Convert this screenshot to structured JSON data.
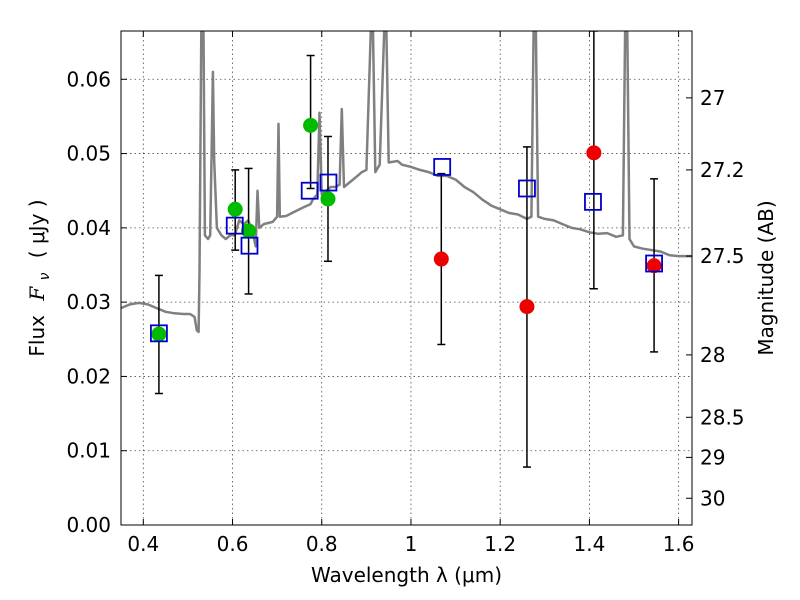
{
  "chart_data": {
    "type": "scatter",
    "xlabel": "Wavelength  λ (μm)",
    "ylabel": "Flux  F_ν  ( μJy )",
    "ylabel_parts": {
      "pre": "Flux",
      "symbol": "F",
      "sub": "ν",
      "post": "( μJy )"
    },
    "ylabel_right": "Magnitude (AB)",
    "xlim": [
      0.35,
      1.63
    ],
    "ylim": [
      0.0,
      0.0665
    ],
    "grid": true,
    "x_ticks": [
      {
        "value": 0.4,
        "label": "0.4"
      },
      {
        "value": 0.6,
        "label": "0.6"
      },
      {
        "value": 0.8,
        "label": "0.8"
      },
      {
        "value": 1.0,
        "label": "1"
      },
      {
        "value": 1.2,
        "label": "1.2"
      },
      {
        "value": 1.4,
        "label": "1.4"
      },
      {
        "value": 1.6,
        "label": "1.6"
      }
    ],
    "y_ticks": [
      {
        "value": 0.0,
        "label": "0.00"
      },
      {
        "value": 0.01,
        "label": "0.01"
      },
      {
        "value": 0.02,
        "label": "0.02"
      },
      {
        "value": 0.03,
        "label": "0.03"
      },
      {
        "value": 0.04,
        "label": "0.04"
      },
      {
        "value": 0.05,
        "label": "0.05"
      },
      {
        "value": 0.06,
        "label": "0.06"
      }
    ],
    "right_ticks": [
      {
        "flux": 0.0575,
        "label": "27"
      },
      {
        "flux": 0.0478,
        "label": "27.2"
      },
      {
        "flux": 0.0362,
        "label": "27.5"
      },
      {
        "flux": 0.0229,
        "label": "28"
      },
      {
        "flux": 0.0145,
        "label": "28.5"
      },
      {
        "flux": 0.0091,
        "label": "29"
      },
      {
        "flux": 0.0036,
        "label": "30"
      }
    ],
    "colors": {
      "template": "#808080",
      "green": "#00bb00",
      "red": "#ee0000",
      "model_box": "#0000cc",
      "errorbar": "#000000"
    },
    "template_spectrum": [
      [
        0.35,
        0.0292
      ],
      [
        0.37,
        0.0297
      ],
      [
        0.39,
        0.0299
      ],
      [
        0.41,
        0.0297
      ],
      [
        0.43,
        0.0292
      ],
      [
        0.45,
        0.0287
      ],
      [
        0.47,
        0.0285
      ],
      [
        0.49,
        0.0284
      ],
      [
        0.505,
        0.0284
      ],
      [
        0.515,
        0.028
      ],
      [
        0.52,
        0.0262
      ],
      [
        0.524,
        0.026
      ],
      [
        0.526,
        0.034
      ],
      [
        0.53,
        0.0665
      ],
      [
        0.535,
        0.0665
      ],
      [
        0.538,
        0.039
      ],
      [
        0.545,
        0.0385
      ],
      [
        0.55,
        0.039
      ],
      [
        0.553,
        0.05
      ],
      [
        0.556,
        0.061
      ],
      [
        0.559,
        0.049
      ],
      [
        0.565,
        0.04
      ],
      [
        0.575,
        0.039
      ],
      [
        0.585,
        0.0385
      ],
      [
        0.595,
        0.039
      ],
      [
        0.605,
        0.039
      ],
      [
        0.615,
        0.041
      ],
      [
        0.625,
        0.0405
      ],
      [
        0.635,
        0.041
      ],
      [
        0.645,
        0.0395
      ],
      [
        0.652,
        0.0375
      ],
      [
        0.656,
        0.045
      ],
      [
        0.66,
        0.04
      ],
      [
        0.67,
        0.0405
      ],
      [
        0.69,
        0.0408
      ],
      [
        0.7,
        0.0415
      ],
      [
        0.703,
        0.054
      ],
      [
        0.706,
        0.0415
      ],
      [
        0.72,
        0.0416
      ],
      [
        0.74,
        0.0422
      ],
      [
        0.76,
        0.0428
      ],
      [
        0.775,
        0.0432
      ],
      [
        0.78,
        0.0438
      ],
      [
        0.79,
        0.0445
      ],
      [
        0.795,
        0.0555
      ],
      [
        0.8,
        0.0445
      ],
      [
        0.81,
        0.045
      ],
      [
        0.82,
        0.0455
      ],
      [
        0.83,
        0.0455
      ],
      [
        0.84,
        0.0458
      ],
      [
        0.845,
        0.056
      ],
      [
        0.85,
        0.0455
      ],
      [
        0.87,
        0.0465
      ],
      [
        0.88,
        0.047
      ],
      [
        0.89,
        0.0475
      ],
      [
        0.9,
        0.0478
      ],
      [
        0.91,
        0.0665
      ],
      [
        0.915,
        0.0665
      ],
      [
        0.92,
        0.0475
      ],
      [
        0.93,
        0.0485
      ],
      [
        0.94,
        0.0665
      ],
      [
        0.945,
        0.0665
      ],
      [
        0.95,
        0.0488
      ],
      [
        0.97,
        0.049
      ],
      [
        0.98,
        0.0485
      ],
      [
        1.0,
        0.0482
      ],
      [
        1.02,
        0.0478
      ],
      [
        1.04,
        0.0475
      ],
      [
        1.06,
        0.047
      ],
      [
        1.08,
        0.047
      ],
      [
        1.1,
        0.0465
      ],
      [
        1.12,
        0.0455
      ],
      [
        1.14,
        0.0448
      ],
      [
        1.16,
        0.0438
      ],
      [
        1.18,
        0.043
      ],
      [
        1.2,
        0.0425
      ],
      [
        1.22,
        0.042
      ],
      [
        1.24,
        0.0418
      ],
      [
        1.26,
        0.0412
      ],
      [
        1.27,
        0.0415
      ],
      [
        1.275,
        0.0665
      ],
      [
        1.28,
        0.0665
      ],
      [
        1.285,
        0.0415
      ],
      [
        1.3,
        0.0412
      ],
      [
        1.32,
        0.041
      ],
      [
        1.34,
        0.0405
      ],
      [
        1.36,
        0.04
      ],
      [
        1.38,
        0.0398
      ],
      [
        1.4,
        0.0394
      ],
      [
        1.42,
        0.0392
      ],
      [
        1.44,
        0.0393
      ],
      [
        1.46,
        0.0388
      ],
      [
        1.475,
        0.039
      ],
      [
        1.48,
        0.0665
      ],
      [
        1.485,
        0.0665
      ],
      [
        1.49,
        0.0385
      ],
      [
        1.5,
        0.0375
      ],
      [
        1.52,
        0.0372
      ],
      [
        1.54,
        0.037
      ],
      [
        1.56,
        0.0368
      ],
      [
        1.58,
        0.0363
      ],
      [
        1.6,
        0.0362
      ],
      [
        1.63,
        0.0362
      ]
    ],
    "series": [
      {
        "color": "green",
        "points": [
          {
            "x": 0.435,
            "y": 0.0257,
            "err_lo": 0.0177,
            "err_hi": 0.0336
          },
          {
            "x": 0.606,
            "y": 0.0425,
            "err_lo": 0.037,
            "err_hi": 0.0478
          },
          {
            "x": 0.636,
            "y": 0.0396,
            "err_lo": 0.0311,
            "err_hi": 0.048
          },
          {
            "x": 0.775,
            "y": 0.0538,
            "err_lo": 0.0453,
            "err_hi": 0.0632
          },
          {
            "x": 0.814,
            "y": 0.0439,
            "err_lo": 0.0355,
            "err_hi": 0.0523
          }
        ]
      },
      {
        "color": "red",
        "points": [
          {
            "x": 1.068,
            "y": 0.0358,
            "err_lo": 0.0243,
            "err_hi": 0.0473
          },
          {
            "x": 1.26,
            "y": 0.0294,
            "err_lo": 0.0078,
            "err_hi": 0.0509
          },
          {
            "x": 1.41,
            "y": 0.0501,
            "err_lo": 0.0318,
            "err_hi": 0.0665
          },
          {
            "x": 1.545,
            "y": 0.0349,
            "err_lo": 0.0233,
            "err_hi": 0.0466
          }
        ]
      }
    ],
    "model_points": [
      {
        "x": 0.435,
        "y": 0.0258
      },
      {
        "x": 0.605,
        "y": 0.0403
      },
      {
        "x": 0.638,
        "y": 0.0376
      },
      {
        "x": 0.773,
        "y": 0.045
      },
      {
        "x": 0.815,
        "y": 0.0461
      },
      {
        "x": 1.07,
        "y": 0.0482
      },
      {
        "x": 1.26,
        "y": 0.0453
      },
      {
        "x": 1.408,
        "y": 0.0435
      },
      {
        "x": 1.545,
        "y": 0.0352
      }
    ]
  }
}
